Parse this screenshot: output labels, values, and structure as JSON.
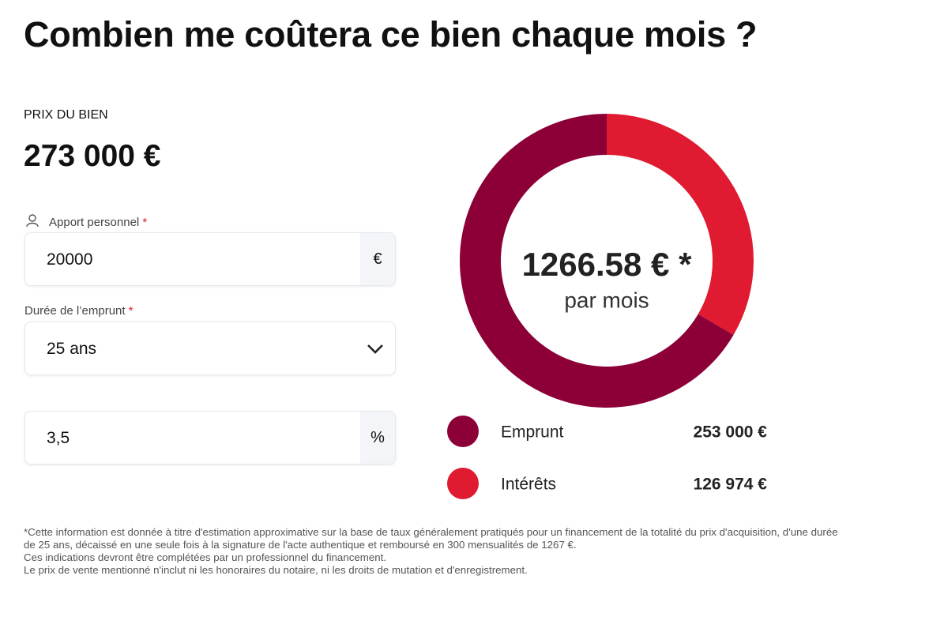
{
  "header": {
    "title": "Combien me coûtera ce bien chaque mois ?"
  },
  "price": {
    "label": "PRIX DU BIEN",
    "value": "273 000 €"
  },
  "fields": [
    {
      "label": "Apport personnel",
      "required": "*",
      "value": "20000",
      "suffix": "€"
    },
    {
      "label": "Durée de l’emprunt",
      "required": "*",
      "value": "25 ans"
    },
    {
      "value": "3,5",
      "suffix": "%"
    }
  ],
  "chart_data": {
    "type": "donut",
    "center_label": "1266.58 € *",
    "center_sublabel": "par mois",
    "categories": [
      "Emprunt",
      "Intérêts"
    ],
    "values": [
      253000,
      126974
    ],
    "value_labels": [
      "253 000 €",
      "126 974 €"
    ],
    "colors": [
      "#8c0037",
      "#e01a30"
    ]
  },
  "footnote": {
    "lines": [
      "*Cette information est donnée à titre d'estimation approximative sur la base de taux généralement pratiqués pour un financement de la totalité du prix d'acquisition, d'une durée",
      "de 25 ans, décaissé en une seule fois à la signature de l'acte authentique et remboursé en 300 mensualités de 1267 €.",
      "Ces indications devront être complétées par un professionnel du financement.",
      "Le prix de vente mentionné n'inclut ni les honoraires du notaire, ni les droits de mutation et d'enregistrement."
    ]
  }
}
